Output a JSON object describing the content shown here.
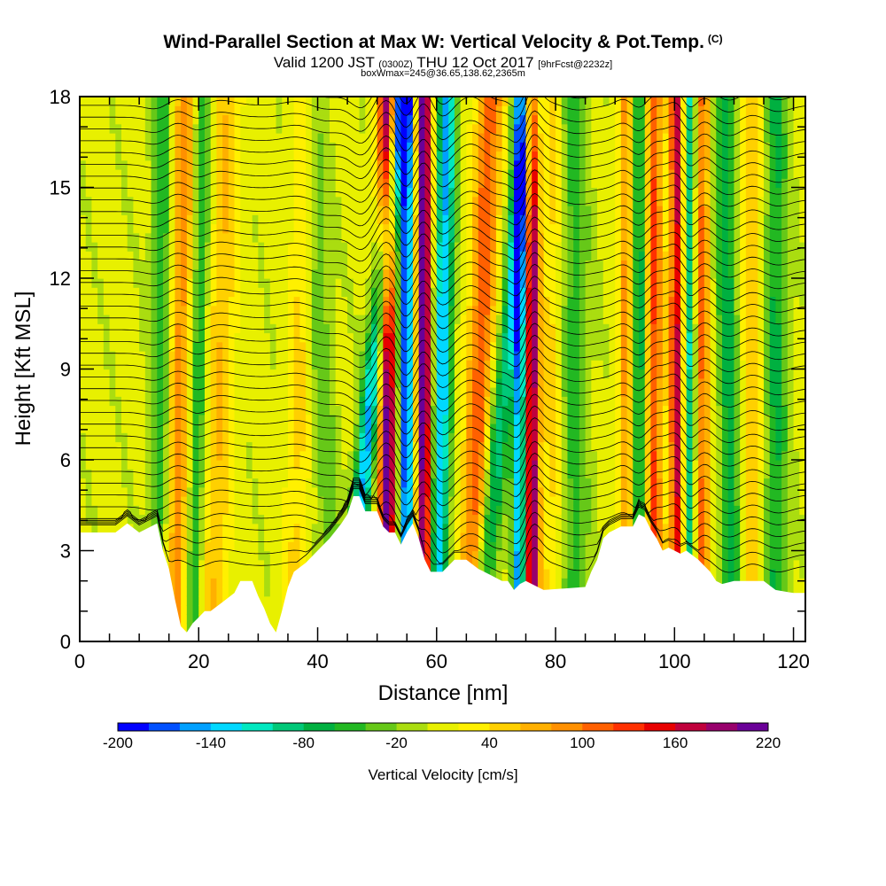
{
  "header": {
    "title": "Wind-Parallel Section at Max W: Vertical Velocity & Pot.Temp.",
    "copyright": "(C)",
    "valid_prefix": "Valid 1200 JST",
    "valid_utc": "(0300Z)",
    "valid_date": "THU 12 Oct 2017",
    "forecast_info": "[9hrFcst@2232z]",
    "box_info": "boxWmax=245@36.65,138.62,2365m"
  },
  "chart_data": {
    "type": "heatmap",
    "xlabel": "Distance [nm]",
    "ylabel": "Height [Kft MSL]",
    "xlim": [
      0,
      122
    ],
    "ylim": [
      0,
      18
    ],
    "x_ticks": [
      0,
      20,
      40,
      60,
      80,
      100,
      120
    ],
    "y_ticks": [
      0,
      3,
      6,
      9,
      12,
      15,
      18
    ],
    "colorbar": {
      "label": "Vertical Velocity [cm/s]",
      "min": -200,
      "max": 220,
      "step": 20,
      "tick_values": [
        -200,
        -140,
        -80,
        -20,
        40,
        100,
        160,
        220
      ],
      "colors": [
        "#0000ff",
        "#0050ff",
        "#00a0ff",
        "#00d8ff",
        "#00e8c0",
        "#00c878",
        "#00b040",
        "#22b822",
        "#66c818",
        "#aadd10",
        "#e8f000",
        "#fff000",
        "#ffd000",
        "#ffb000",
        "#ff9000",
        "#ff6000",
        "#ff3000",
        "#e80000",
        "#c0003c",
        "#98006c",
        "#6a0098"
      ]
    },
    "terrain_kft": [
      [
        0,
        3.6
      ],
      [
        6,
        3.6
      ],
      [
        8,
        3.9
      ],
      [
        10,
        3.6
      ],
      [
        13,
        3.9
      ],
      [
        14,
        3.0
      ],
      [
        15,
        2.4
      ],
      [
        16,
        1.4
      ],
      [
        17,
        0.5
      ],
      [
        18,
        0.3
      ],
      [
        19,
        0.6
      ],
      [
        20,
        0.8
      ],
      [
        21,
        1.0
      ],
      [
        22,
        1.0
      ],
      [
        24,
        1.3
      ],
      [
        26,
        1.6
      ],
      [
        27,
        2.0
      ],
      [
        29,
        2.0
      ],
      [
        30,
        1.5
      ],
      [
        31,
        1.1
      ],
      [
        32,
        0.6
      ],
      [
        33,
        0.3
      ],
      [
        34,
        1.0
      ],
      [
        35,
        1.8
      ],
      [
        36,
        2.3
      ],
      [
        38,
        2.6
      ],
      [
        40,
        3.0
      ],
      [
        42,
        3.4
      ],
      [
        44,
        3.9
      ],
      [
        45,
        4.2
      ],
      [
        46,
        4.8
      ],
      [
        47,
        4.8
      ],
      [
        48,
        4.3
      ],
      [
        50,
        4.3
      ],
      [
        51,
        3.8
      ],
      [
        52,
        3.6
      ],
      [
        53,
        3.6
      ],
      [
        54,
        3.2
      ],
      [
        55,
        3.6
      ],
      [
        56,
        3.9
      ],
      [
        57,
        3.4
      ],
      [
        58,
        2.7
      ],
      [
        59,
        2.3
      ],
      [
        61,
        2.3
      ],
      [
        63,
        2.7
      ],
      [
        65,
        2.7
      ],
      [
        67,
        2.4
      ],
      [
        69,
        2.2
      ],
      [
        71,
        2.0
      ],
      [
        72,
        2.0
      ],
      [
        73,
        1.7
      ],
      [
        74,
        1.9
      ],
      [
        75,
        2.0
      ],
      [
        76,
        1.9
      ],
      [
        78,
        1.7
      ],
      [
        85,
        1.8
      ],
      [
        86,
        2.3
      ],
      [
        87,
        2.7
      ],
      [
        88,
        3.4
      ],
      [
        89,
        3.6
      ],
      [
        91,
        3.8
      ],
      [
        93,
        3.8
      ],
      [
        94,
        4.2
      ],
      [
        95,
        4.1
      ],
      [
        96,
        3.7
      ],
      [
        97,
        3.4
      ],
      [
        98,
        3.0
      ],
      [
        99,
        3.1
      ],
      [
        100,
        3.0
      ],
      [
        101,
        2.9
      ],
      [
        102,
        3.0
      ],
      [
        104,
        2.7
      ],
      [
        106,
        2.3
      ],
      [
        107,
        2.0
      ],
      [
        108,
        1.9
      ],
      [
        110,
        2.0
      ],
      [
        115,
        2.0
      ],
      [
        117,
        1.7
      ],
      [
        120,
        1.6
      ],
      [
        122,
        1.6
      ]
    ],
    "updraft_bands": [
      {
        "x": 13.5,
        "w": 1.8,
        "amp": -60,
        "tilt": 0.05
      },
      {
        "x": 16.5,
        "w": 2.0,
        "amp": 90,
        "tilt": 0.1
      },
      {
        "x": 19.5,
        "w": 1.6,
        "amp": -70,
        "tilt": 0.1
      },
      {
        "x": 23.0,
        "w": 2.5,
        "amp": 55,
        "tilt": 0.15
      },
      {
        "x": 36.5,
        "w": 2.0,
        "amp": 40,
        "tilt": 0.1
      },
      {
        "x": 41.5,
        "w": 2.0,
        "amp": -40,
        "tilt": -0.2
      },
      {
        "x": 47.5,
        "w": 1.6,
        "amp": -150,
        "tilt": 0.5
      },
      {
        "x": 51.8,
        "w": 1.6,
        "amp": 210,
        "tilt": 0.0
      },
      {
        "x": 54.8,
        "w": 1.5,
        "amp": -190,
        "tilt": 0.0
      },
      {
        "x": 57.8,
        "w": 1.4,
        "amp": 220,
        "tilt": 0.0
      },
      {
        "x": 60.5,
        "w": 1.6,
        "amp": -150,
        "tilt": 0.1
      },
      {
        "x": 66.5,
        "w": 2.2,
        "amp": 110,
        "tilt": 0.2
      },
      {
        "x": 69.5,
        "w": 1.8,
        "amp": -100,
        "tilt": 0.5
      },
      {
        "x": 76.0,
        "w": 1.2,
        "amp": 210,
        "tilt": 0.0
      },
      {
        "x": 74.0,
        "w": 1.2,
        "amp": -170,
        "tilt": 0.0
      },
      {
        "x": 79.5,
        "w": 2.0,
        "amp": 45,
        "tilt": 0.0
      },
      {
        "x": 83.0,
        "w": 2.5,
        "amp": -55,
        "tilt": 0.0
      },
      {
        "x": 92.0,
        "w": 1.4,
        "amp": 90,
        "tilt": 0.0
      },
      {
        "x": 94.0,
        "w": 1.4,
        "amp": -100,
        "tilt": 0.0
      },
      {
        "x": 96.5,
        "w": 1.5,
        "amp": 120,
        "tilt": 0.0
      },
      {
        "x": 100.5,
        "w": 1.3,
        "amp": 170,
        "tilt": 0.0
      },
      {
        "x": 102.5,
        "w": 1.3,
        "amp": -130,
        "tilt": 0.0
      },
      {
        "x": 104.5,
        "w": 1.4,
        "amp": 110,
        "tilt": 0.0
      },
      {
        "x": 109.5,
        "w": 1.8,
        "amp": -80,
        "tilt": -0.1
      },
      {
        "x": 113.0,
        "w": 2.0,
        "amp": 50,
        "tilt": 0.0
      },
      {
        "x": 117.0,
        "w": 2.0,
        "amp": -70,
        "tilt": 0.0
      }
    ]
  }
}
